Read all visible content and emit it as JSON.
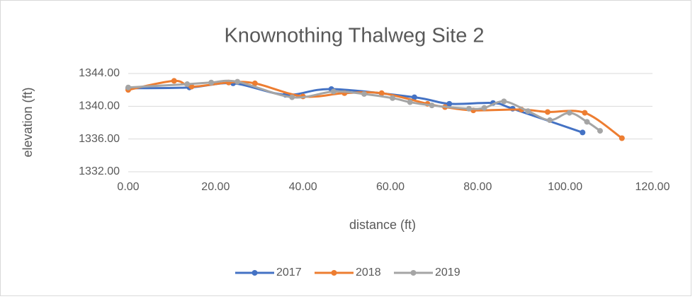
{
  "chart_data": {
    "type": "line",
    "title": "Knownothing Thalweg Site 2",
    "xlabel": "distance (ft)",
    "ylabel": "elevation (ft)",
    "xlim": [
      0,
      120
    ],
    "ylim": [
      1332,
      1344
    ],
    "xticks": [
      {
        "value": 0,
        "label": "0.00"
      },
      {
        "value": 20,
        "label": "20.00"
      },
      {
        "value": 40,
        "label": "40.00"
      },
      {
        "value": 60,
        "label": "60.00"
      },
      {
        "value": 80,
        "label": "80.00"
      },
      {
        "value": 100,
        "label": "100.00"
      },
      {
        "value": 120,
        "label": "120.00"
      }
    ],
    "yticks": [
      {
        "value": 1332,
        "label": "1332.00"
      },
      {
        "value": 1336,
        "label": "1336.00"
      },
      {
        "value": 1340,
        "label": "1340.00"
      },
      {
        "value": 1344,
        "label": "1344.00"
      }
    ],
    "grid": true,
    "smooth": true,
    "legend": "bottom",
    "series": [
      {
        "name": "2017",
        "color": "#4472c4",
        "x": [
          0,
          14,
          24,
          36,
          46.5,
          65.5,
          73.5,
          83.5,
          88,
          104
        ],
        "values": [
          1342.2,
          1342.3,
          1342.8,
          1341.4,
          1342.1,
          1341.1,
          1340.3,
          1340.4,
          1339.7,
          1336.8
        ]
      },
      {
        "name": "2018",
        "color": "#ed7d31",
        "x": [
          0,
          10.5,
          14.5,
          23,
          29,
          40,
          49.5,
          58,
          68.5,
          72.5,
          79,
          90,
          96,
          104.5,
          113
        ],
        "values": [
          1342.0,
          1343.1,
          1342.4,
          1342.9,
          1342.8,
          1341.2,
          1341.6,
          1341.6,
          1340.3,
          1339.9,
          1339.5,
          1339.6,
          1339.3,
          1339.2,
          1336.1
        ]
      },
      {
        "name": "2019",
        "color": "#a5a5a5",
        "x": [
          0,
          13.5,
          19,
          25,
          37.5,
          47,
          54,
          60.5,
          64.5,
          69.5,
          78,
          81.5,
          86,
          91.5,
          96.5,
          101,
          105,
          108
        ],
        "values": [
          1342.3,
          1342.7,
          1342.9,
          1343.0,
          1341.1,
          1341.8,
          1341.5,
          1341.0,
          1340.5,
          1340.1,
          1339.7,
          1339.8,
          1340.6,
          1339.4,
          1338.3,
          1339.2,
          1338.1,
          1337.0
        ]
      }
    ]
  }
}
